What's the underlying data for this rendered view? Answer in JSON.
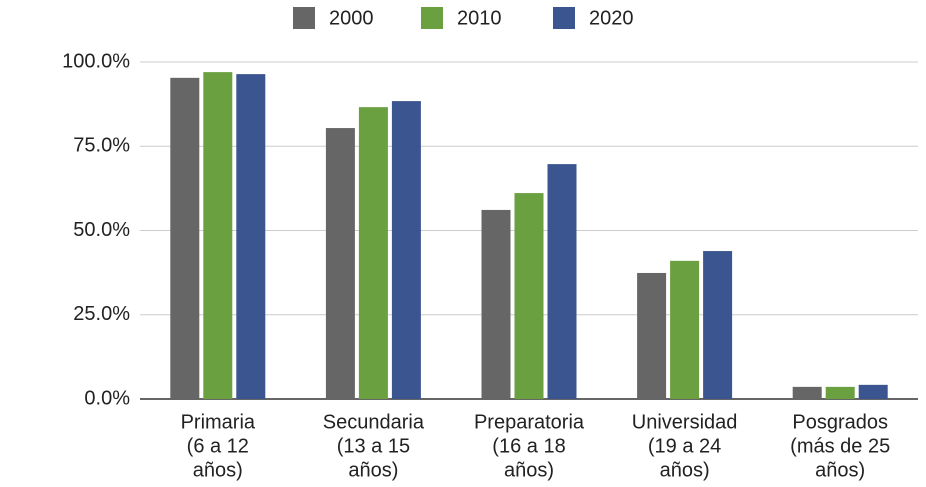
{
  "chart_data": {
    "type": "bar",
    "categories": [
      [
        "Primaria",
        "(6 a 12",
        "años)"
      ],
      [
        "Secundaria",
        "(13 a 15",
        "años)"
      ],
      [
        "Preparatoria",
        "(16 a 18",
        "años)"
      ],
      [
        "Universidad",
        "(19 a 24",
        "años)"
      ],
      [
        "Posgrados",
        "(más de 25",
        "años)"
      ]
    ],
    "series": [
      {
        "name": "2000",
        "color": "#666666",
        "values": [
          95.3,
          80.4,
          56.1,
          37.4,
          3.6
        ]
      },
      {
        "name": "2010",
        "color": "#6aa03f",
        "values": [
          97.0,
          86.6,
          61.1,
          41.0,
          3.6
        ]
      },
      {
        "name": "2020",
        "color": "#3b5590",
        "values": [
          96.4,
          88.4,
          69.7,
          43.9,
          4.2
        ]
      }
    ],
    "ylim": [
      0,
      100
    ],
    "yticks": [
      {
        "value": 0,
        "label": "0.0%"
      },
      {
        "value": 25,
        "label": "25.0%"
      },
      {
        "value": 50,
        "label": "50.0%"
      },
      {
        "value": 75,
        "label": "75.0%"
      },
      {
        "value": 100,
        "label": "100.0%"
      }
    ],
    "grid": true,
    "legend": "top"
  }
}
